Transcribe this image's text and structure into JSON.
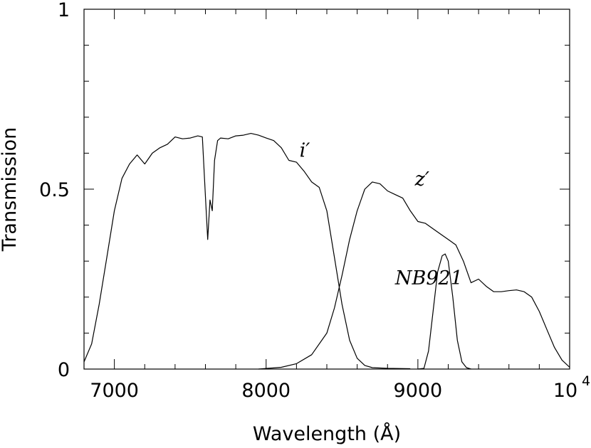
{
  "chart_data": {
    "type": "line",
    "xlabel": "Wavelength (Å)",
    "ylabel": "Transmission",
    "xlim": [
      6800,
      10000
    ],
    "ylim": [
      0,
      1
    ],
    "grid": false,
    "x_ticks": [
      {
        "value": 7000,
        "label": "7000"
      },
      {
        "value": 8000,
        "label": "8000"
      },
      {
        "value": 9000,
        "label": "9000"
      },
      {
        "value": 10000,
        "label": "10",
        "exponent": "4"
      }
    ],
    "y_ticks": [
      {
        "value": 0,
        "label": "0"
      },
      {
        "value": 0.5,
        "label": "0.5"
      },
      {
        "value": 1,
        "label": "1"
      }
    ],
    "series": [
      {
        "name": "i′",
        "points": [
          [
            6800,
            0.02
          ],
          [
            6850,
            0.07
          ],
          [
            6900,
            0.18
          ],
          [
            6950,
            0.31
          ],
          [
            7000,
            0.44
          ],
          [
            7050,
            0.53
          ],
          [
            7100,
            0.57
          ],
          [
            7150,
            0.595
          ],
          [
            7200,
            0.57
          ],
          [
            7250,
            0.6
          ],
          [
            7300,
            0.615
          ],
          [
            7350,
            0.625
          ],
          [
            7400,
            0.645
          ],
          [
            7450,
            0.64
          ],
          [
            7500,
            0.642
          ],
          [
            7550,
            0.648
          ],
          [
            7580,
            0.645
          ],
          [
            7600,
            0.48
          ],
          [
            7615,
            0.36
          ],
          [
            7630,
            0.47
          ],
          [
            7645,
            0.44
          ],
          [
            7660,
            0.58
          ],
          [
            7680,
            0.635
          ],
          [
            7700,
            0.642
          ],
          [
            7750,
            0.64
          ],
          [
            7800,
            0.648
          ],
          [
            7850,
            0.65
          ],
          [
            7900,
            0.655
          ],
          [
            7950,
            0.65
          ],
          [
            8000,
            0.642
          ],
          [
            8050,
            0.635
          ],
          [
            8100,
            0.615
          ],
          [
            8150,
            0.58
          ],
          [
            8200,
            0.575
          ],
          [
            8250,
            0.55
          ],
          [
            8300,
            0.52
          ],
          [
            8350,
            0.505
          ],
          [
            8400,
            0.44
          ],
          [
            8450,
            0.31
          ],
          [
            8500,
            0.18
          ],
          [
            8550,
            0.08
          ],
          [
            8600,
            0.03
          ],
          [
            8650,
            0.01
          ],
          [
            8700,
            0.004
          ],
          [
            8800,
            0.002
          ],
          [
            8950,
            0.001
          ]
        ]
      },
      {
        "name": "z′",
        "points": [
          [
            7950,
            0.0
          ],
          [
            8100,
            0.005
          ],
          [
            8200,
            0.015
          ],
          [
            8300,
            0.04
          ],
          [
            8400,
            0.1
          ],
          [
            8450,
            0.17
          ],
          [
            8500,
            0.26
          ],
          [
            8550,
            0.36
          ],
          [
            8600,
            0.44
          ],
          [
            8650,
            0.5
          ],
          [
            8700,
            0.52
          ],
          [
            8750,
            0.515
          ],
          [
            8800,
            0.495
          ],
          [
            8850,
            0.485
          ],
          [
            8900,
            0.475
          ],
          [
            8950,
            0.44
          ],
          [
            9000,
            0.41
          ],
          [
            9050,
            0.405
          ],
          [
            9100,
            0.39
          ],
          [
            9150,
            0.375
          ],
          [
            9200,
            0.36
          ],
          [
            9250,
            0.345
          ],
          [
            9300,
            0.3
          ],
          [
            9350,
            0.24
          ],
          [
            9400,
            0.25
          ],
          [
            9450,
            0.23
          ],
          [
            9500,
            0.215
          ],
          [
            9550,
            0.215
          ],
          [
            9600,
            0.218
          ],
          [
            9650,
            0.22
          ],
          [
            9700,
            0.215
          ],
          [
            9750,
            0.2
          ],
          [
            9800,
            0.16
          ],
          [
            9850,
            0.11
          ],
          [
            9900,
            0.06
          ],
          [
            9950,
            0.025
          ],
          [
            10000,
            0.005
          ]
        ]
      },
      {
        "name": "NB921",
        "points": [
          [
            9000,
            0.0
          ],
          [
            9040,
            0.002
          ],
          [
            9070,
            0.05
          ],
          [
            9100,
            0.16
          ],
          [
            9130,
            0.27
          ],
          [
            9160,
            0.315
          ],
          [
            9180,
            0.32
          ],
          [
            9200,
            0.3
          ],
          [
            9230,
            0.2
          ],
          [
            9260,
            0.08
          ],
          [
            9290,
            0.02
          ],
          [
            9320,
            0.004
          ],
          [
            9350,
            0.0
          ]
        ]
      }
    ],
    "annotations": [
      {
        "text": "i′",
        "x": 8220,
        "y": 0.59
      },
      {
        "text": "z′",
        "x": 8980,
        "y": 0.51
      },
      {
        "text": "NB921",
        "x": 8850,
        "y": 0.235
      }
    ]
  }
}
